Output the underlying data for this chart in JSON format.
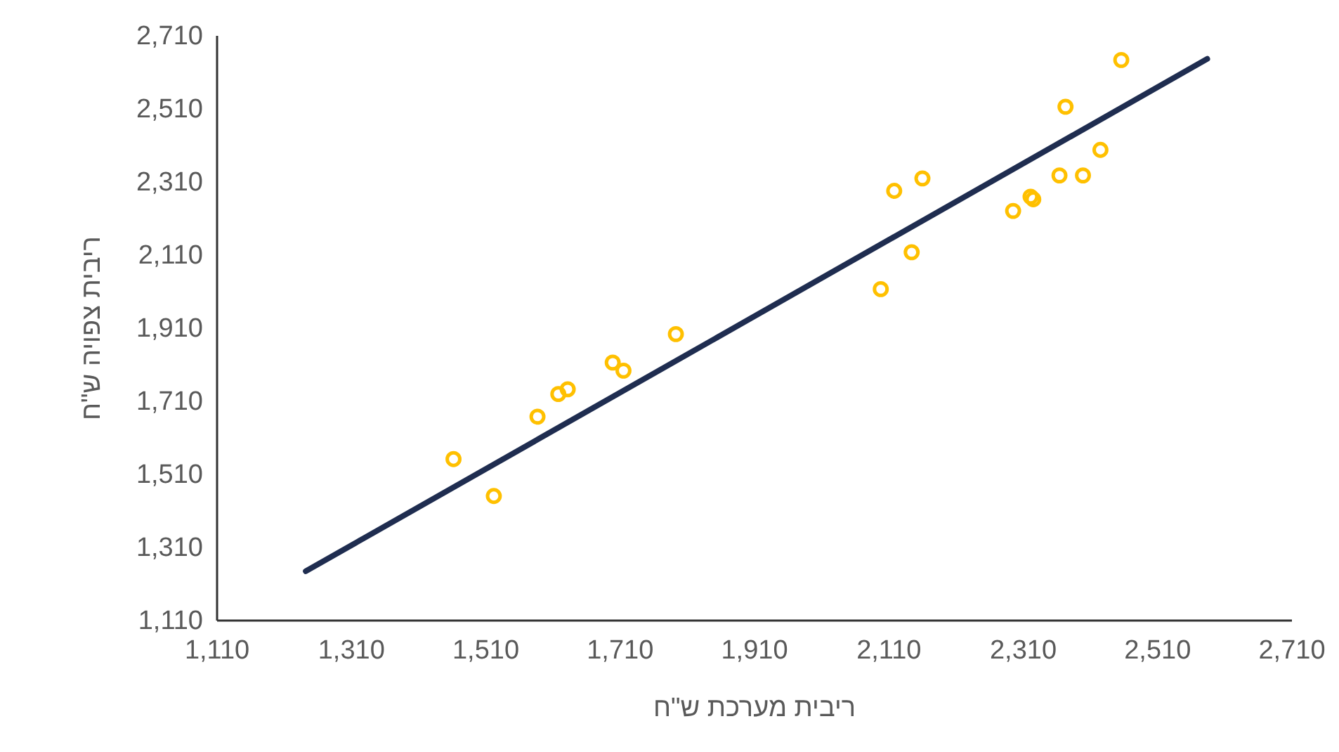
{
  "chart_data": {
    "type": "scatter",
    "xlabel": "ריבית מערכת ש\"ח",
    "ylabel": "ריבית צפויה ש\"ח",
    "xlim": [
      1110,
      2710
    ],
    "ylim": [
      1110,
      2710
    ],
    "xticks": [
      {
        "value": 1110,
        "label": "1,110"
      },
      {
        "value": 1310,
        "label": "1,310"
      },
      {
        "value": 1510,
        "label": "1,510"
      },
      {
        "value": 1710,
        "label": "1,710"
      },
      {
        "value": 1910,
        "label": "1,910"
      },
      {
        "value": 2110,
        "label": "2,110"
      },
      {
        "value": 2310,
        "label": "2,310"
      },
      {
        "value": 2510,
        "label": "2,510"
      },
      {
        "value": 2710,
        "label": "2,710"
      }
    ],
    "yticks": [
      {
        "value": 1110,
        "label": "1,110"
      },
      {
        "value": 1310,
        "label": "1,310"
      },
      {
        "value": 1510,
        "label": "1,510"
      },
      {
        "value": 1710,
        "label": "1,710"
      },
      {
        "value": 1910,
        "label": "1,910"
      },
      {
        "value": 2110,
        "label": "2,110"
      },
      {
        "value": 2310,
        "label": "2,310"
      },
      {
        "value": 2510,
        "label": "2,510"
      },
      {
        "value": 2710,
        "label": "2,710"
      }
    ],
    "grid": false,
    "marker": "circle",
    "series": [
      {
        "color": "#ffc000",
        "x": [
          1463,
          1523,
          1588,
          1619,
          1633,
          1700,
          1716,
          1794,
          2099,
          2119,
          2145,
          2161,
          2296,
          2322,
          2326,
          2365,
          2374,
          2400,
          2426,
          2457
        ],
        "values": [
          1550,
          1449,
          1666,
          1728,
          1741,
          1814,
          1792,
          1892,
          2015,
          2284,
          2116,
          2318,
          2229,
          2268,
          2261,
          2326,
          2514,
          2326,
          2396,
          2642
        ]
      },
      {
        "type": "line",
        "color": "#1f2d50",
        "line_style": "solid",
        "marker": "none",
        "x": [
          1243,
          2585
        ],
        "values": [
          1243,
          2645
        ]
      }
    ]
  }
}
